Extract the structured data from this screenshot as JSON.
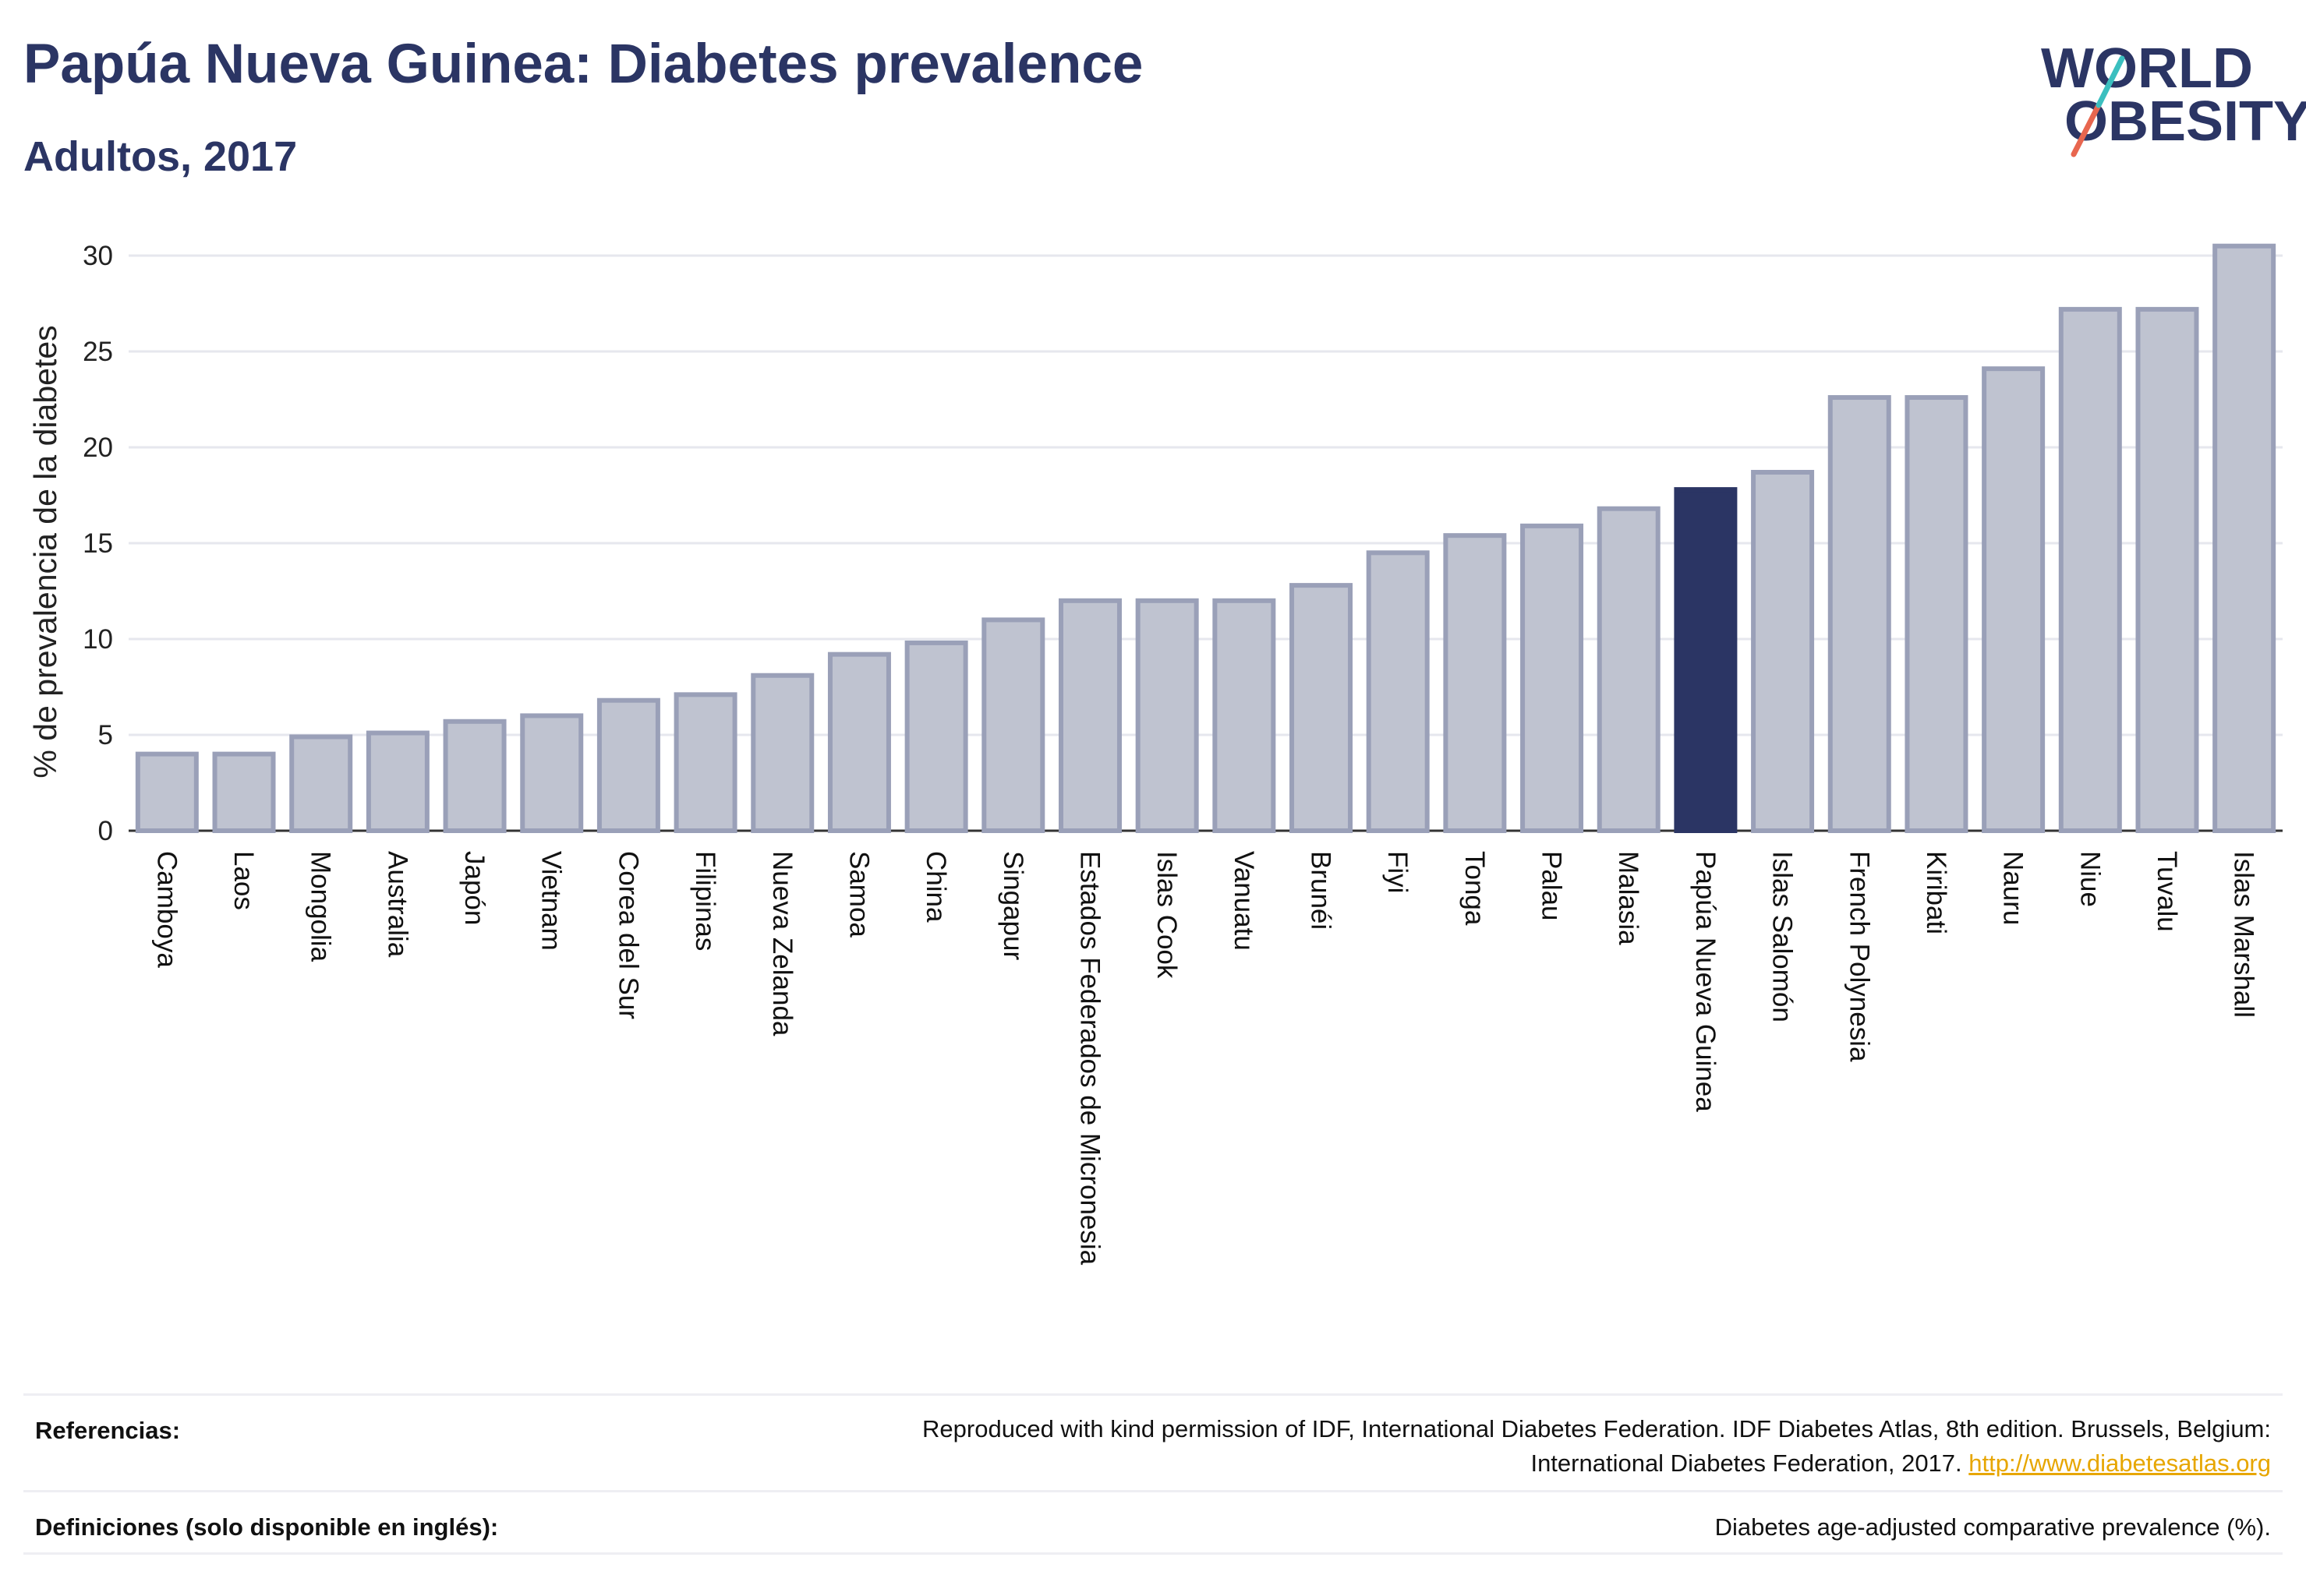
{
  "header": {
    "title": "Papúa Nueva Guinea: Diabetes prevalence",
    "subtitle": "Adultos, 2017"
  },
  "logo": {
    "line1": "WORLD",
    "line2": "OBESITY",
    "accent_teal": "#3bbfbf",
    "accent_red": "#e8664f"
  },
  "chart_data": {
    "type": "bar",
    "title": "Papúa Nueva Guinea: Diabetes prevalence",
    "subtitle": "Adultos, 2017",
    "ylabel": "% de prevalencia de la diabetes",
    "xlabel": "",
    "ylim": [
      0,
      32
    ],
    "yticks": [
      0,
      5,
      10,
      15,
      20,
      25,
      30
    ],
    "grid": true,
    "highlight": "Papúa Nueva Guinea",
    "colors": {
      "bar": "#bfc3d0",
      "bar_border": "#9aa0b8",
      "highlight": "#2b3564"
    },
    "categories": [
      "Camboya",
      "Laos",
      "Mongolia",
      "Australia",
      "Japón",
      "Vietnam",
      "Corea del Sur",
      "Filipinas",
      "Nueva Zelanda",
      "Samoa",
      "China",
      "Singapur",
      "Estados Federados de Micronesia",
      "Islas Cook",
      "Vanuatu",
      "Brunéi",
      "Fiyi",
      "Tonga",
      "Palau",
      "Malasia",
      "Papúa Nueva Guinea",
      "Islas Salomón",
      "French Polynesia",
      "Kiribati",
      "Nauru",
      "Niue",
      "Tuvalu",
      "Islas Marshall"
    ],
    "values": [
      4.0,
      4.0,
      4.9,
      5.1,
      5.7,
      6.0,
      6.8,
      7.1,
      8.1,
      9.2,
      9.8,
      11.0,
      12.0,
      12.0,
      12.0,
      12.8,
      14.5,
      15.4,
      15.9,
      16.8,
      17.8,
      18.7,
      22.6,
      22.6,
      24.1,
      27.2,
      27.2,
      30.5
    ]
  },
  "footer": {
    "references_label": "Referencias:",
    "references_text_line1": "Reproduced with kind permission of IDF, International Diabetes Federation. IDF Diabetes Atlas, 8th edition. Brussels, Belgium:",
    "references_text_line2": "International Diabetes Federation, 2017. ",
    "references_link": "http://www.diabetesatlas.org",
    "definitions_label": "Definiciones (solo disponible en inglés):",
    "definitions_text": "Diabetes age-adjusted comparative prevalence (%)."
  }
}
